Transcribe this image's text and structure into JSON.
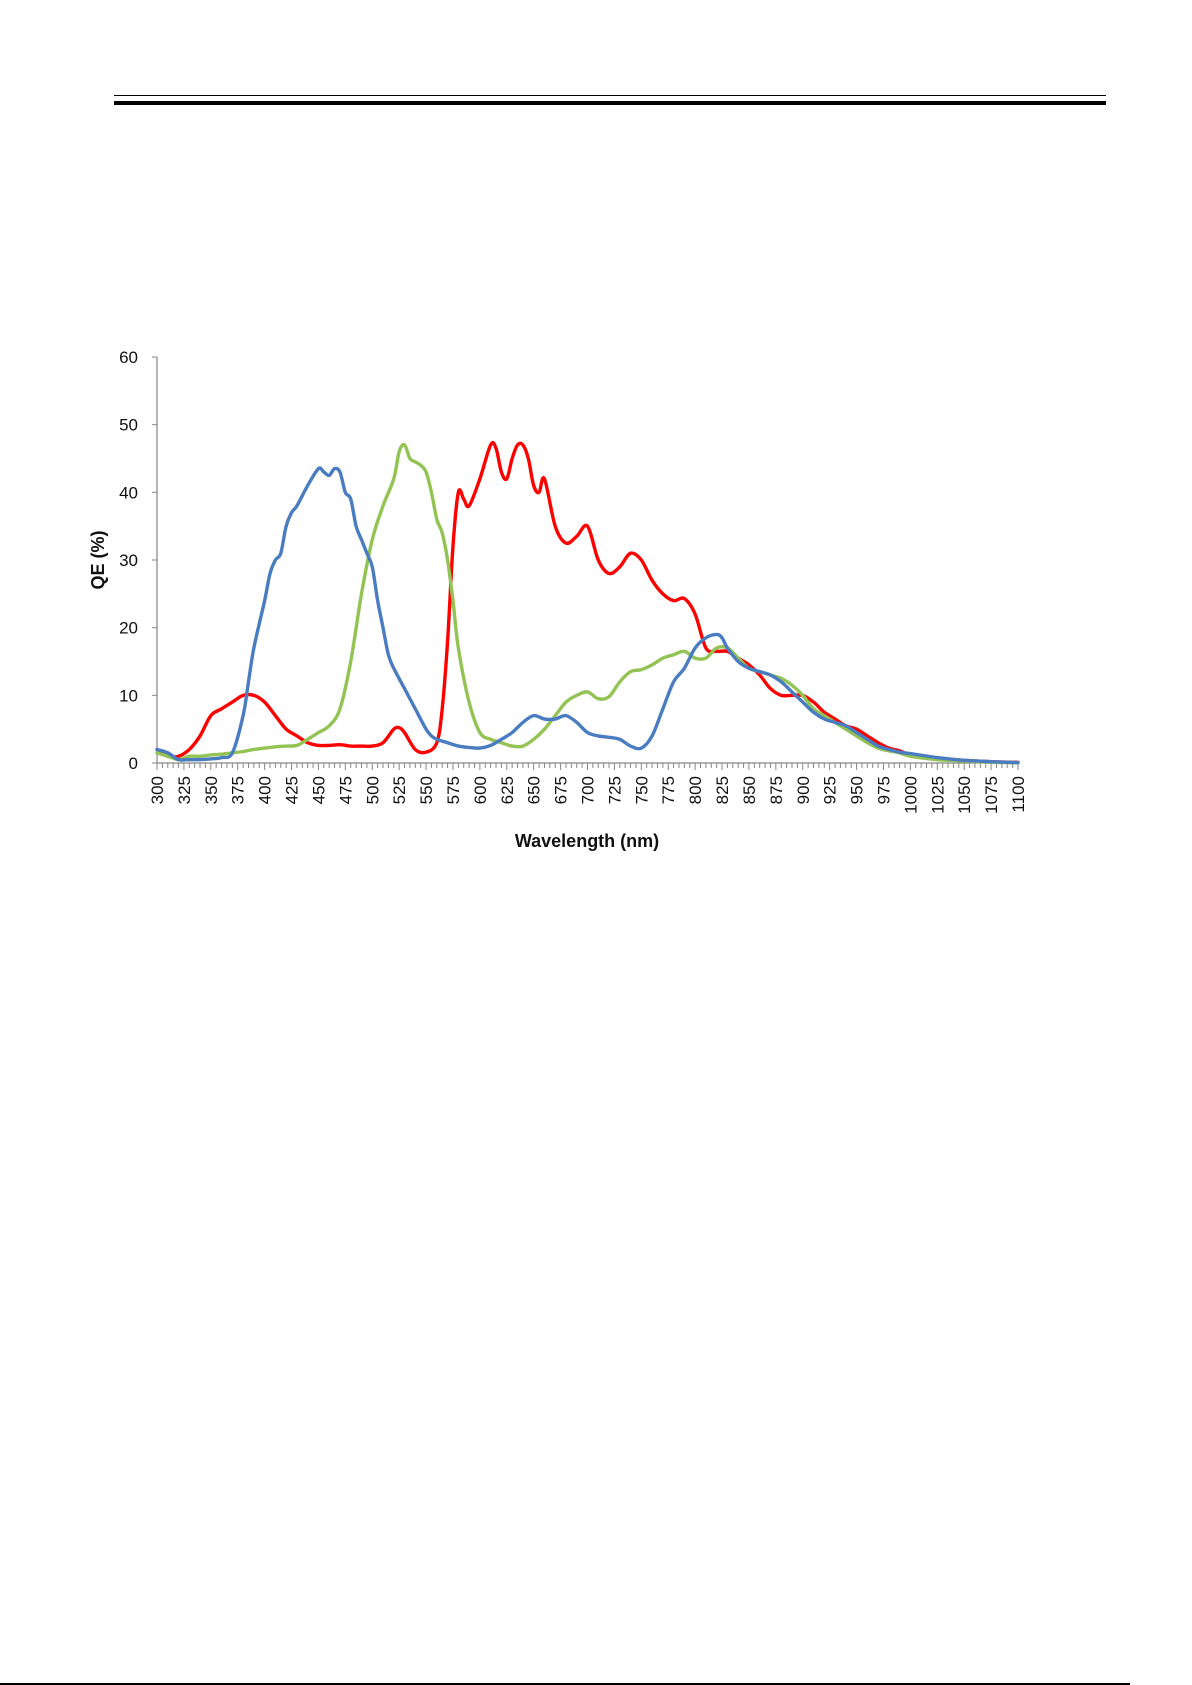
{
  "chart_data": {
    "type": "line",
    "title": "",
    "xlabel": "Wavelength (nm)",
    "ylabel": "QE (%)",
    "xlim": [
      300,
      1100
    ],
    "ylim": [
      0,
      60
    ],
    "x_tick_labels": [
      "300",
      "325",
      "350",
      "375",
      "400",
      "425",
      "450",
      "475",
      "500",
      "525",
      "550",
      "575",
      "600",
      "625",
      "650",
      "675",
      "700",
      "725",
      "750",
      "775",
      "800",
      "825",
      "850",
      "875",
      "900",
      "925",
      "950",
      "975",
      "1000",
      "1025",
      "1050",
      "1075",
      "1100"
    ],
    "y_tick_labels": [
      "0",
      "10",
      "20",
      "30",
      "40",
      "50",
      "60"
    ],
    "grid": false,
    "legend": "none",
    "series": [
      {
        "color": "#ff0000",
        "x": [
          300,
          310,
          320,
          330,
          340,
          350,
          360,
          370,
          380,
          390,
          400,
          410,
          420,
          430,
          440,
          450,
          460,
          470,
          480,
          490,
          500,
          510,
          520,
          525,
          530,
          540,
          550,
          560,
          565,
          570,
          575,
          580,
          585,
          590,
          600,
          610,
          615,
          620,
          625,
          630,
          635,
          640,
          645,
          650,
          655,
          660,
          670,
          680,
          690,
          700,
          710,
          720,
          730,
          740,
          750,
          760,
          770,
          780,
          790,
          800,
          810,
          820,
          830,
          840,
          850,
          860,
          870,
          880,
          890,
          900,
          910,
          920,
          930,
          940,
          950,
          960,
          970,
          980,
          990,
          1000,
          1025,
          1050,
          1075,
          1100
        ],
        "y": [
          2,
          1,
          1,
          2,
          4,
          7,
          8,
          9,
          10,
          10,
          9,
          7,
          5,
          4,
          3,
          2.6,
          2.6,
          2.7,
          2.5,
          2.5,
          2.5,
          3,
          5,
          5.2,
          4.5,
          2,
          1.6,
          3,
          8,
          18,
          32,
          40,
          39,
          38,
          42,
          47,
          46.5,
          43,
          42,
          45,
          47,
          47,
          45,
          41,
          40,
          42,
          35,
          32.5,
          33.5,
          35,
          30,
          28,
          29,
          31,
          30,
          27,
          25,
          24,
          24.3,
          22,
          17,
          16.5,
          16.5,
          15.5,
          14.5,
          13,
          11,
          10,
          10,
          10,
          9,
          7.5,
          6.5,
          5.5,
          5,
          4,
          3,
          2.2,
          1.8,
          1.2,
          0.7,
          0.4,
          0.2,
          0.1
        ]
      },
      {
        "color": "#92c353",
        "x": [
          300,
          310,
          320,
          330,
          340,
          350,
          360,
          370,
          380,
          390,
          400,
          410,
          420,
          430,
          440,
          450,
          460,
          470,
          480,
          490,
          500,
          510,
          520,
          525,
          530,
          535,
          540,
          545,
          550,
          555,
          560,
          565,
          570,
          575,
          580,
          590,
          600,
          610,
          620,
          630,
          640,
          650,
          660,
          670,
          680,
          690,
          700,
          710,
          720,
          730,
          740,
          750,
          760,
          770,
          780,
          790,
          800,
          810,
          820,
          830,
          840,
          850,
          860,
          870,
          880,
          890,
          900,
          910,
          920,
          930,
          940,
          950,
          960,
          970,
          980,
          990,
          1000,
          1025,
          1050,
          1075,
          1100
        ],
        "y": [
          1.5,
          1,
          0.5,
          1,
          1,
          1.2,
          1.3,
          1.5,
          1.7,
          2,
          2.2,
          2.4,
          2.5,
          2.6,
          3.5,
          4.5,
          5.5,
          8,
          15,
          25,
          33,
          38,
          42,
          46,
          47,
          45,
          44.5,
          44,
          43,
          40,
          36,
          34,
          30,
          24,
          17,
          9,
          4.5,
          3.5,
          3,
          2.5,
          2.5,
          3.5,
          5,
          7,
          9,
          10,
          10.5,
          9.5,
          9.8,
          12,
          13.5,
          13.8,
          14.5,
          15.5,
          16,
          16.5,
          15.5,
          15.5,
          17,
          17,
          15.5,
          14,
          13.5,
          13,
          12.5,
          11.5,
          10,
          8,
          7,
          6,
          5,
          4,
          3,
          2.2,
          1.8,
          1.5,
          1,
          0.5,
          0.3,
          0.1,
          0.05
        ]
      },
      {
        "color": "#4a7cc1",
        "x": [
          300,
          310,
          320,
          330,
          340,
          350,
          360,
          370,
          380,
          385,
          390,
          400,
          405,
          410,
          415,
          420,
          425,
          430,
          440,
          450,
          455,
          460,
          465,
          470,
          475,
          480,
          485,
          490,
          495,
          500,
          505,
          510,
          515,
          520,
          530,
          540,
          550,
          555,
          560,
          570,
          580,
          590,
          600,
          610,
          620,
          630,
          640,
          650,
          660,
          670,
          680,
          690,
          700,
          710,
          720,
          730,
          740,
          750,
          760,
          770,
          780,
          790,
          800,
          810,
          820,
          825,
          830,
          840,
          850,
          860,
          870,
          880,
          890,
          900,
          910,
          920,
          930,
          940,
          950,
          960,
          970,
          980,
          990,
          1000,
          1025,
          1050,
          1075,
          1100
        ],
        "y": [
          2,
          1.5,
          0.5,
          0.5,
          0.5,
          0.6,
          0.8,
          1.5,
          7,
          12,
          17,
          24,
          28,
          30,
          31,
          35,
          37,
          38,
          41,
          43.5,
          43,
          42.5,
          43.5,
          43,
          40,
          39,
          35,
          33,
          31,
          29,
          24,
          20,
          16,
          14,
          11,
          8,
          5,
          4,
          3.5,
          3,
          2.5,
          2.3,
          2.2,
          2.6,
          3.5,
          4.5,
          6,
          7,
          6.5,
          6.5,
          7,
          6,
          4.5,
          4,
          3.8,
          3.5,
          2.5,
          2.2,
          4,
          8,
          12,
          14,
          17,
          18.5,
          19,
          18.5,
          17,
          15,
          14,
          13.5,
          13,
          12,
          10.5,
          9,
          7.5,
          6.5,
          6,
          5.5,
          4.5,
          3.5,
          2.5,
          2,
          1.6,
          1.4,
          0.8,
          0.4,
          0.2,
          0.05
        ]
      }
    ]
  }
}
